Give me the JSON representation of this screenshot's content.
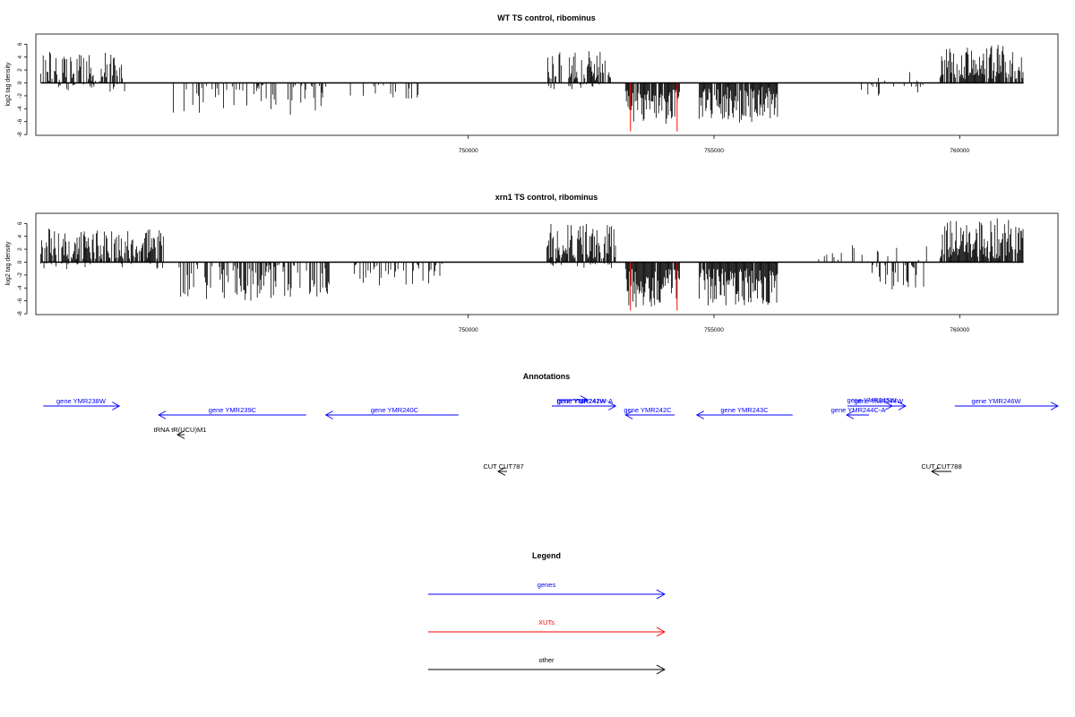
{
  "colors": {
    "gene": "#0000ff",
    "xut": "#ff0000",
    "other": "#000000",
    "axis": "#000000"
  },
  "chart_data": [
    {
      "type": "bar",
      "title": "WT TS control, ribominus",
      "ylabel": "log2 tag density",
      "xlim": [
        741200,
        762000
      ],
      "ylim": [
        -8,
        7
      ],
      "yticks": [
        6,
        4,
        2,
        0,
        -2,
        -4,
        -6,
        -8
      ],
      "xticks": [
        750000,
        755000,
        760000
      ],
      "xut_lines": [
        {
          "x": 753300,
          "y": -7.5
        },
        {
          "x": 754250,
          "y": -7.5
        }
      ],
      "segments": [
        {
          "x0": 741300,
          "x1": 743050,
          "sign": 1,
          "ymin": 0.3,
          "ymax": 4.8,
          "density": 0.6,
          "seed": 1
        },
        {
          "x0": 741300,
          "x1": 743050,
          "sign": -1,
          "ymin": 0.2,
          "ymax": 1.4,
          "density": 0.12,
          "seed": 2
        },
        {
          "x0": 744000,
          "x1": 747150,
          "sign": -1,
          "ymin": 0.3,
          "ymax": 5.0,
          "density": 0.25,
          "seed": 3
        },
        {
          "x0": 747600,
          "x1": 749200,
          "sign": -1,
          "ymin": 0.3,
          "ymax": 2.8,
          "density": 0.12,
          "seed": 4
        },
        {
          "x0": 751600,
          "x1": 752900,
          "sign": 1,
          "ymin": 0.4,
          "ymax": 5.0,
          "density": 0.65,
          "seed": 5
        },
        {
          "x0": 751600,
          "x1": 752900,
          "sign": -1,
          "ymin": 0.2,
          "ymax": 1.0,
          "density": 0.1,
          "seed": 6
        },
        {
          "x0": 753200,
          "x1": 754300,
          "sign": -1,
          "ymin": 1.0,
          "ymax": 6.4,
          "density": 0.9,
          "seed": 7
        },
        {
          "x0": 754700,
          "x1": 756300,
          "sign": -1,
          "ymin": 0.6,
          "ymax": 6.2,
          "density": 0.85,
          "seed": 8
        },
        {
          "x0": 757100,
          "x1": 757600,
          "sign": 1,
          "ymin": 0.3,
          "ymax": 1.2,
          "density": 0.06,
          "seed": 9
        },
        {
          "x0": 758000,
          "x1": 759300,
          "sign": -1,
          "ymin": 0.3,
          "ymax": 2.2,
          "density": 0.2,
          "seed": 10
        },
        {
          "x0": 758000,
          "x1": 759300,
          "sign": 1,
          "ymin": 0.3,
          "ymax": 2.4,
          "density": 0.05,
          "seed": 11
        },
        {
          "x0": 759600,
          "x1": 761300,
          "sign": 1,
          "ymin": 0.6,
          "ymax": 6.0,
          "density": 0.85,
          "seed": 12
        }
      ]
    },
    {
      "type": "bar",
      "title": "xrn1 TS control, ribominus",
      "ylabel": "log2 tag density",
      "xlim": [
        741200,
        762000
      ],
      "ylim": [
        -8,
        7
      ],
      "yticks": [
        6,
        4,
        2,
        0,
        -2,
        -4,
        -6,
        -8
      ],
      "xticks": [
        750000,
        755000,
        760000
      ],
      "xut_lines": [
        {
          "x": 753300,
          "y": -7.5
        },
        {
          "x": 754250,
          "y": -7.5
        }
      ],
      "segments": [
        {
          "x0": 741300,
          "x1": 743800,
          "sign": 1,
          "ymin": 0.5,
          "ymax": 5.2,
          "density": 0.8,
          "seed": 21
        },
        {
          "x0": 741300,
          "x1": 743800,
          "sign": -1,
          "ymin": 0.2,
          "ymax": 1.2,
          "density": 0.12,
          "seed": 22
        },
        {
          "x0": 744000,
          "x1": 747200,
          "sign": -1,
          "ymin": 0.4,
          "ymax": 6.6,
          "density": 0.45,
          "seed": 23
        },
        {
          "x0": 747600,
          "x1": 749500,
          "sign": -1,
          "ymin": 0.3,
          "ymax": 3.8,
          "density": 0.3,
          "seed": 24
        },
        {
          "x0": 751600,
          "x1": 753000,
          "sign": 1,
          "ymin": 0.5,
          "ymax": 6.0,
          "density": 0.85,
          "seed": 25
        },
        {
          "x0": 751600,
          "x1": 753000,
          "sign": -1,
          "ymin": 0.2,
          "ymax": 1.0,
          "density": 0.15,
          "seed": 26
        },
        {
          "x0": 753200,
          "x1": 754300,
          "sign": -1,
          "ymin": 1.0,
          "ymax": 7.0,
          "density": 0.95,
          "seed": 27
        },
        {
          "x0": 754700,
          "x1": 756300,
          "sign": -1,
          "ymin": 1.0,
          "ymax": 7.0,
          "density": 0.95,
          "seed": 28
        },
        {
          "x0": 757000,
          "x1": 757700,
          "sign": 1,
          "ymin": 0.3,
          "ymax": 2.5,
          "density": 0.08,
          "seed": 29
        },
        {
          "x0": 757700,
          "x1": 759400,
          "sign": 1,
          "ymin": 0.3,
          "ymax": 2.6,
          "density": 0.15,
          "seed": 30
        },
        {
          "x0": 758200,
          "x1": 759300,
          "sign": -1,
          "ymin": 0.4,
          "ymax": 4.5,
          "density": 0.4,
          "seed": 31
        },
        {
          "x0": 759600,
          "x1": 761300,
          "sign": 1,
          "ymin": 0.6,
          "ymax": 6.8,
          "density": 0.9,
          "seed": 32
        }
      ]
    }
  ],
  "annotations": {
    "title": "Annotations",
    "features": [
      {
        "label": "gene YMR238W",
        "kind": "gene",
        "dir": "right",
        "start": 741350,
        "end": 742900,
        "row": 1,
        "tx": 742120
      },
      {
        "label": "gene YMR239C",
        "kind": "gene",
        "dir": "left",
        "start": 743700,
        "end": 746700,
        "row": 2,
        "tx": 745200
      },
      {
        "label": "gene YMR240C",
        "kind": "gene",
        "dir": "left",
        "start": 747100,
        "end": 749800,
        "row": 2,
        "tx": 748500
      },
      {
        "label": "tRNA tR(UCU)M1",
        "kind": "other",
        "dir": "left",
        "start": 743500,
        "end": 743650,
        "row": 3,
        "tx": 743650
      },
      {
        "label": "gene YMR241W",
        "kind": "gene",
        "dir": "right",
        "start": 751700,
        "end": 753000,
        "row": 1,
        "tx": 752300
      },
      {
        "label": "gene YMR242C",
        "kind": "gene",
        "dir": "left",
        "start": 753200,
        "end": 754200,
        "row": 2,
        "tx": 753650
      },
      {
        "label": "gene YMR242W-A",
        "kind": "gene",
        "dir": "right",
        "start": 754150,
        "end": 754200,
        "row": 0,
        "tx": 754700
      },
      {
        "label": "gene YMR243C",
        "kind": "gene",
        "dir": "left",
        "start": 754650,
        "end": 756600,
        "row": 2,
        "tx": 755620
      },
      {
        "label": "gene YMR244W",
        "kind": "gene",
        "dir": "right",
        "start": 757750,
        "end": 758900,
        "row": 1,
        "tx": 758350
      },
      {
        "label": "gene YMR244C-A",
        "kind": "gene",
        "dir": "left",
        "start": 758600,
        "end": 759020,
        "row": 3,
        "tx": 758950
      },
      {
        "label": "gene YMR245W",
        "kind": "gene",
        "dir": "right",
        "start": 758700,
        "end": 759400,
        "row": 1.5,
        "tx": 759100
      },
      {
        "label": "gene YMR246W",
        "kind": "gene",
        "dir": "right",
        "start": 759900,
        "end": 762000,
        "row": 1,
        "tx": 760950
      },
      {
        "label": "CUT CUT787",
        "kind": "other",
        "dir": "left",
        "start": 753200,
        "end": 753400,
        "row": 4,
        "tx": 753300
      },
      {
        "label": "CUT CUT788",
        "kind": "other",
        "dir": "left",
        "start": 760100,
        "end": 760450,
        "row": 4,
        "tx": 760300
      }
    ]
  },
  "legend": {
    "title": "Legend",
    "items": [
      {
        "label": "genes",
        "kind": "gene"
      },
      {
        "label": "XUTs",
        "kind": "xut"
      },
      {
        "label": "other",
        "kind": "other"
      }
    ]
  }
}
